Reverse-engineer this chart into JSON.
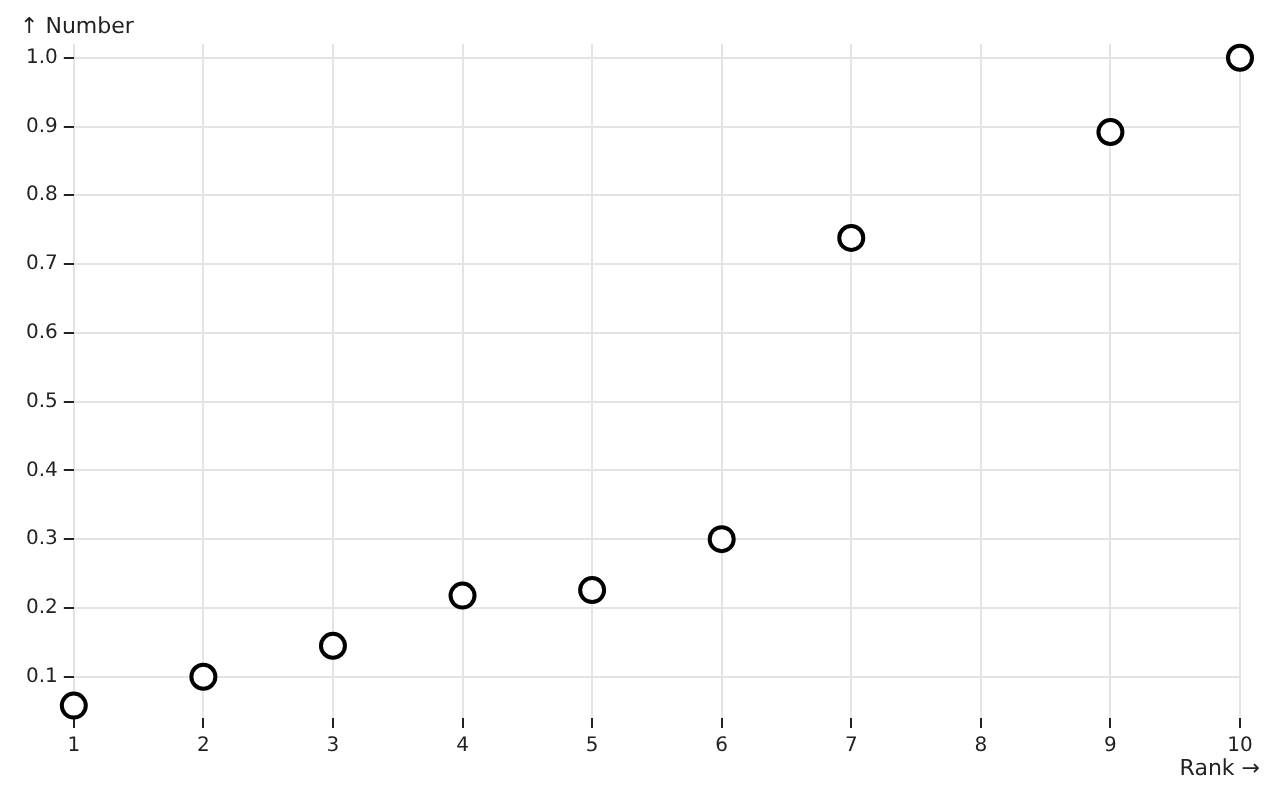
{
  "chart_data": {
    "type": "scatter",
    "xlabel": "Rank →",
    "ylabel": "↑ Number",
    "x": [
      1,
      2,
      3,
      4,
      5,
      6,
      7,
      9,
      10
    ],
    "series": [
      {
        "color": "#000000",
        "values": [
          0.058,
          0.1,
          0.145,
          0.218,
          0.226,
          0.3,
          0.738,
          0.892,
          1.0
        ]
      }
    ],
    "xlim": [
      1,
      10
    ],
    "xticks": [
      1,
      2,
      3,
      4,
      5,
      6,
      7,
      8,
      9,
      10
    ],
    "ylim": [
      0.04,
      1.02
    ],
    "yticks": [
      0.1,
      0.2,
      0.3,
      0.4,
      0.5,
      0.6,
      0.7,
      0.8,
      0.9,
      {
        "value": 1,
        "label": "1.0"
      }
    ],
    "grid": true,
    "marker": "circle",
    "legend": false
  }
}
